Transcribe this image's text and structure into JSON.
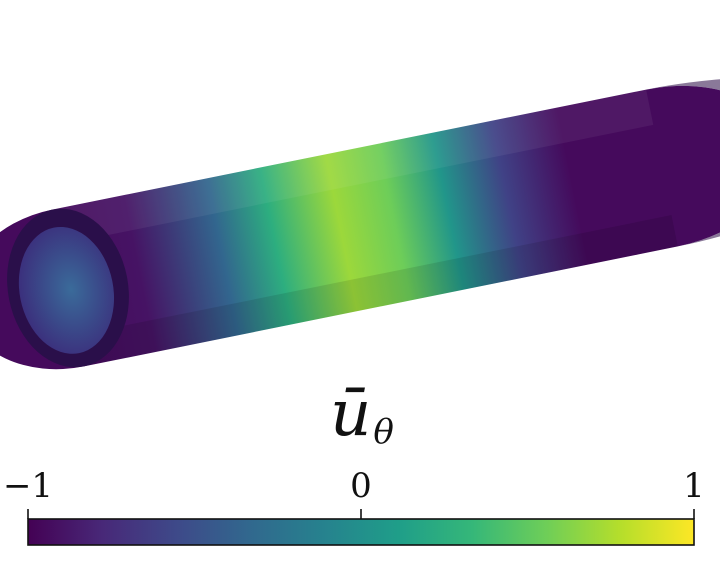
{
  "colorbar": {
    "title_symbol": "ū",
    "title_subscript": "θ",
    "min": -1,
    "max": 1,
    "ticks": [
      {
        "value": -1,
        "label": "−1"
      },
      {
        "value": 0,
        "label": "0"
      },
      {
        "value": 1,
        "label": "1"
      }
    ],
    "colormap": "viridis",
    "colormap_stops": [
      "#440154",
      "#482878",
      "#3e4989",
      "#31688e",
      "#26828e",
      "#1f9e89",
      "#35b779",
      "#6ece58",
      "#b5de2b",
      "#fde725"
    ]
  },
  "tube": {
    "field": "ū_θ",
    "field_profile_along_axis": [
      {
        "t": 0.0,
        "value": -0.95
      },
      {
        "t": 0.12,
        "value": -0.9
      },
      {
        "t": 0.26,
        "value": -0.35
      },
      {
        "t": 0.35,
        "value": 0.25
      },
      {
        "t": 0.46,
        "value": 0.7
      },
      {
        "t": 0.55,
        "value": 0.55
      },
      {
        "t": 0.64,
        "value": 0.05
      },
      {
        "t": 0.74,
        "value": -0.6
      },
      {
        "t": 0.85,
        "value": -0.95
      },
      {
        "t": 1.0,
        "value": -0.95
      }
    ],
    "inner_wall_color": "#3a4f8c",
    "end_ring_color": "#2a0f4a"
  }
}
